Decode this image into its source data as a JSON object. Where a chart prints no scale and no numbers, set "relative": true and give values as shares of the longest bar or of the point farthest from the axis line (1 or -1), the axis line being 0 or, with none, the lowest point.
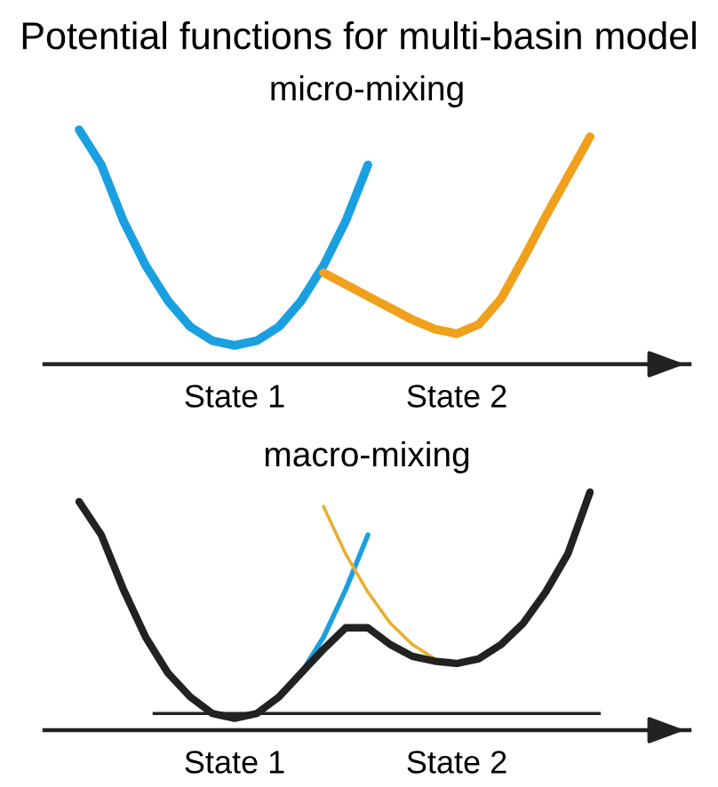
{
  "chart_data": [
    {
      "type": "line",
      "title": "Potential functions for multi-basin model",
      "subtitle": "micro-mixing",
      "relative": true,
      "legend": false,
      "grid": false,
      "marker": "none",
      "line_style": "solid",
      "categories": [
        null,
        null,
        null,
        null,
        null,
        null,
        null,
        "State 1",
        null,
        null,
        null,
        null,
        null,
        null,
        null,
        null,
        null,
        "State 2",
        null,
        null,
        null,
        null,
        null,
        null
      ],
      "series": [
        {
          "color": "#1aa0e0",
          "values": [
            1.0,
            0.85,
            0.61,
            0.42,
            0.27,
            0.16,
            0.1,
            0.08,
            0.1,
            0.16,
            0.27,
            0.42,
            0.61,
            0.85,
            null,
            null,
            null,
            null,
            null,
            null,
            null,
            null,
            null,
            null
          ]
        },
        {
          "color": "#f0a01a",
          "values": [
            null,
            null,
            null,
            null,
            null,
            null,
            null,
            null,
            null,
            null,
            null,
            0.39,
            0.34,
            0.29,
            0.24,
            0.19,
            0.15,
            0.13,
            0.17,
            0.28,
            0.45,
            0.63,
            0.8,
            0.97
          ]
        }
      ]
    },
    {
      "type": "line",
      "title": "macro-mixing",
      "relative": true,
      "legend": false,
      "grid": false,
      "marker": "none",
      "line_style": "solid",
      "categories": [
        null,
        null,
        null,
        null,
        null,
        null,
        null,
        "State 1",
        null,
        null,
        null,
        null,
        null,
        null,
        null,
        null,
        null,
        "State 2",
        null,
        null,
        null,
        null,
        null,
        null
      ],
      "series": [
        {
          "color": "#1aa0e0",
          "values": [
            null,
            null,
            null,
            null,
            null,
            null,
            null,
            null,
            null,
            null,
            0.24,
            0.39,
            0.59,
            0.82,
            null,
            null,
            null,
            null,
            null,
            null,
            null,
            null,
            null,
            null
          ]
        },
        {
          "color": "#e8b030",
          "values": [
            null,
            null,
            null,
            null,
            null,
            null,
            null,
            null,
            null,
            null,
            null,
            0.94,
            0.74,
            0.58,
            0.45,
            0.36,
            0.3,
            null,
            null,
            null,
            null,
            null,
            null,
            null
          ]
        },
        {
          "color": "#222222",
          "values": [
            0.96,
            0.82,
            0.59,
            0.39,
            0.24,
            0.14,
            0.07,
            0.05,
            0.07,
            0.14,
            0.24,
            0.34,
            0.43,
            0.43,
            0.36,
            0.31,
            0.29,
            0.28,
            0.3,
            0.36,
            0.45,
            0.58,
            0.74,
            1.0
          ]
        }
      ],
      "ref_lines": [
        {
          "axis": "y",
          "value": 0.07,
          "color": "#222222"
        }
      ]
    }
  ]
}
